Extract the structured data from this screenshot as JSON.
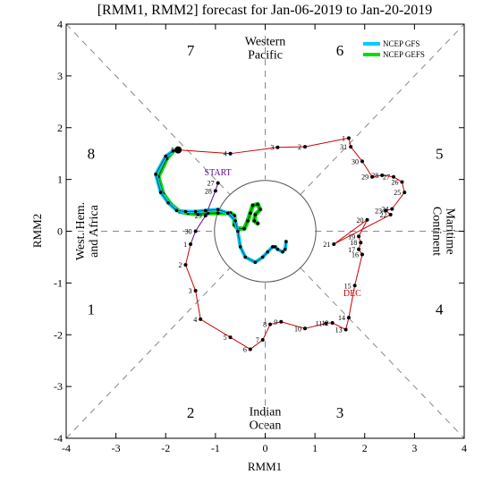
{
  "chart_data": {
    "type": "line",
    "title": "[RMM1, RMM2] forecast for Jan-06-2019 to Jan-20-2019",
    "xlabel": "RMM1",
    "ylabel": "RMM2",
    "xlim": [
      -4,
      4
    ],
    "ylim": [
      -4,
      4
    ],
    "ticks": [
      -4,
      -3,
      -2,
      -1,
      0,
      1,
      2,
      3,
      4
    ],
    "colors": {
      "observed": "#cc0000",
      "gfs": "#00ccff",
      "gefs": "#00dd00",
      "start": "#5a0a8c",
      "dec": "#cc0000"
    },
    "phase_numbers": [
      {
        "label": "1",
        "x": -3.5,
        "y": -1.5
      },
      {
        "label": "2",
        "x": -1.5,
        "y": -3.5
      },
      {
        "label": "3",
        "x": 1.5,
        "y": -3.5
      },
      {
        "label": "4",
        "x": 3.5,
        "y": -1.5
      },
      {
        "label": "5",
        "x": 3.5,
        "y": 1.5
      },
      {
        "label": "6",
        "x": 1.5,
        "y": 3.5
      },
      {
        "label": "7",
        "x": -1.5,
        "y": 3.5
      },
      {
        "label": "8",
        "x": -3.5,
        "y": 1.5
      }
    ],
    "regions": [
      {
        "lines": [
          "Western",
          "Pacific"
        ],
        "x": 0,
        "y": 3.55,
        "rotate": 0
      },
      {
        "lines": [
          "Indian",
          "Ocean"
        ],
        "x": 0,
        "y": -3.6,
        "rotate": 0
      },
      {
        "lines": [
          "West. Hem.",
          "and Africa"
        ],
        "x": -3.6,
        "y": 0,
        "rotate": -90
      },
      {
        "lines": [
          "Maritime",
          "Continent"
        ],
        "x": 3.6,
        "y": 0,
        "rotate": 90
      }
    ],
    "legend": {
      "position": "top-right",
      "entries": [
        {
          "name": "NCEP GFS",
          "color": "#00ccff"
        },
        {
          "name": "NCEP GEFS",
          "color": "#00dd00"
        }
      ]
    },
    "annotations": [
      {
        "text": "START",
        "x": -0.95,
        "y": 1.08,
        "color": "#5a0a8c"
      },
      {
        "text": "DEC",
        "x": 1.75,
        "y": -1.25,
        "color": "#cc0000"
      }
    ],
    "observed": [
      {
        "label": "27",
        "x": -0.95,
        "y": 0.93
      },
      {
        "label": "28",
        "x": -1.0,
        "y": 0.78
      },
      {
        "label": "29",
        "x": -1.2,
        "y": 0.3
      },
      {
        "label": "30",
        "x": -1.4,
        "y": 0.0
      },
      {
        "label": "1",
        "x": -1.5,
        "y": -0.25
      },
      {
        "label": "2",
        "x": -1.6,
        "y": -0.65
      },
      {
        "label": "3",
        "x": -1.4,
        "y": -1.15
      },
      {
        "label": "4",
        "x": -1.3,
        "y": -1.7
      },
      {
        "label": "5",
        "x": -0.7,
        "y": -2.05
      },
      {
        "label": "6",
        "x": -0.3,
        "y": -2.28
      },
      {
        "label": "7",
        "x": -0.05,
        "y": -2.1
      },
      {
        "label": "8",
        "x": 0.1,
        "y": -1.8
      },
      {
        "label": "9",
        "x": 0.32,
        "y": -1.75
      },
      {
        "label": "10",
        "x": 0.8,
        "y": -1.88
      },
      {
        "label": "11",
        "x": 1.22,
        "y": -1.78
      },
      {
        "label": "12",
        "x": 1.35,
        "y": -1.77
      },
      {
        "label": "13",
        "x": 1.62,
        "y": -1.9
      },
      {
        "label": "14",
        "x": 1.68,
        "y": -1.67
      },
      {
        "label": "15",
        "x": 1.8,
        "y": -1.05
      },
      {
        "label": "16",
        "x": 1.95,
        "y": -0.45
      },
      {
        "label": "17",
        "x": 1.88,
        "y": -0.35
      },
      {
        "label": "18",
        "x": 1.92,
        "y": -0.22
      },
      {
        "label": "19",
        "x": 1.88,
        "y": -0.1
      },
      {
        "label": "20",
        "x": 2.05,
        "y": 0.22
      },
      {
        "label": "21",
        "x": 1.38,
        "y": -0.25
      },
      {
        "label": "22",
        "x": 2.52,
        "y": 0.32
      },
      {
        "label": "23",
        "x": 2.42,
        "y": 0.4
      },
      {
        "label": "24",
        "x": 2.55,
        "y": 0.43
      },
      {
        "label": "25",
        "x": 2.8,
        "y": 0.75
      },
      {
        "label": "26",
        "x": 2.75,
        "y": 0.95
      },
      {
        "label": "27",
        "x": 2.58,
        "y": 1.05
      },
      {
        "label": "28",
        "x": 2.35,
        "y": 1.08
      },
      {
        "label": "29",
        "x": 2.15,
        "y": 1.05
      },
      {
        "label": "30",
        "x": 1.95,
        "y": 1.35
      },
      {
        "label": "31",
        "x": 1.72,
        "y": 1.63
      },
      {
        "label": "1",
        "x": 1.68,
        "y": 1.8
      },
      {
        "label": "2",
        "x": 0.8,
        "y": 1.63
      },
      {
        "label": "3",
        "x": 0.25,
        "y": 1.62
      },
      {
        "label": "4",
        "x": -0.7,
        "y": 1.5
      },
      {
        "label": "5",
        "x": -1.75,
        "y": 1.57
      }
    ],
    "gfs": [
      [
        -1.85,
        1.55
      ],
      [
        -2.0,
        1.45
      ],
      [
        -2.2,
        1.1
      ],
      [
        -2.1,
        0.75
      ],
      [
        -1.95,
        0.55
      ],
      [
        -1.78,
        0.4
      ],
      [
        -1.6,
        0.38
      ],
      [
        -1.4,
        0.38
      ],
      [
        -1.2,
        0.4
      ],
      [
        -0.95,
        0.42
      ],
      [
        -0.75,
        0.35
      ],
      [
        -0.6,
        0.2
      ],
      [
        -0.55,
        0.0
      ],
      [
        -0.5,
        -0.3
      ],
      [
        -0.4,
        -0.5
      ],
      [
        -0.2,
        -0.6
      ],
      [
        -0.05,
        -0.5
      ],
      [
        0.05,
        -0.4
      ],
      [
        0.15,
        -0.3
      ],
      [
        0.2,
        -0.3
      ],
      [
        0.25,
        -0.35
      ],
      [
        0.35,
        -0.4
      ],
      [
        0.4,
        -0.35
      ],
      [
        0.42,
        -0.2
      ]
    ],
    "gefs": [
      [
        -1.85,
        1.55
      ],
      [
        -1.98,
        1.4
      ],
      [
        -2.15,
        1.05
      ],
      [
        -2.05,
        0.72
      ],
      [
        -1.9,
        0.52
      ],
      [
        -1.72,
        0.38
      ],
      [
        -1.55,
        0.35
      ],
      [
        -1.35,
        0.33
      ],
      [
        -1.15,
        0.35
      ],
      [
        -0.95,
        0.35
      ],
      [
        -0.7,
        0.35
      ],
      [
        -0.62,
        0.3
      ],
      [
        -0.62,
        0.12
      ],
      [
        -0.55,
        0.05
      ],
      [
        -0.42,
        0.05
      ],
      [
        -0.35,
        0.2
      ],
      [
        -0.3,
        0.35
      ],
      [
        -0.25,
        0.5
      ],
      [
        -0.15,
        0.52
      ],
      [
        -0.1,
        0.42
      ],
      [
        -0.2,
        0.32
      ],
      [
        -0.22,
        0.2
      ],
      [
        -0.15,
        0.15
      ]
    ]
  }
}
